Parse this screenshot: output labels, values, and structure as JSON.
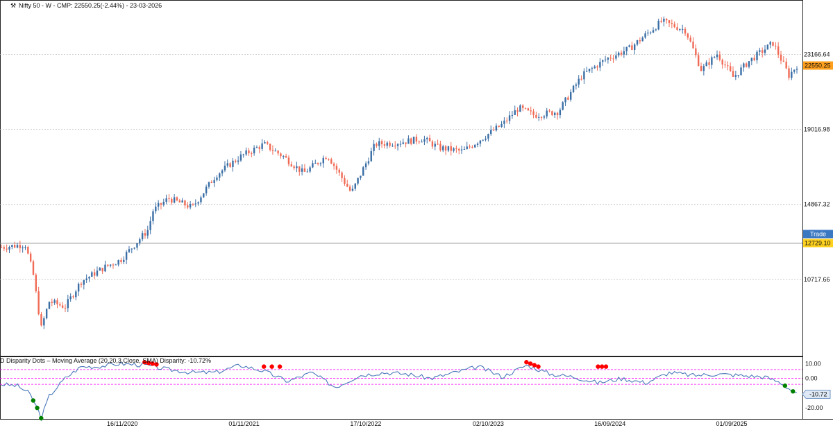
{
  "header": {
    "title": "Nifty 50 - W - CMP: 22550.25(-2.44%) - 23-03-2026",
    "icon": "wrench-icon"
  },
  "indicator": {
    "title": "D Disparity Dots – Moving Average (20,20,3,Close, SMA) Disparity: -10.72%"
  },
  "colors": {
    "up": "#3a6ea5",
    "down": "#f06a55",
    "indicator_line": "#4a78b8",
    "dot_top": "#ff0000",
    "dot_bottom": "#008000",
    "band": "#ff00ff",
    "cmp_badge": "#ff9f1c",
    "trade_badge": "#3a78c2",
    "trade_price_badge": "#ffd21f"
  },
  "chart_data": [
    {
      "type": "candlestick",
      "title": "Nifty 50 - W - CMP: 22550.25(-2.44%) - 23-03-2026",
      "y_ticks": [
        23166.64,
        19016.98,
        14867.32,
        10717.66
      ],
      "y_tick_labels": [
        "23166.64",
        "19016.98",
        "14867.32",
        "10717.66"
      ],
      "ylim": [
        6800,
        25600
      ],
      "cmp": {
        "value": 22550.25,
        "label": "22550.25"
      },
      "trade": {
        "label": "Trade",
        "value": 12729.1,
        "price_label": "12729.10"
      },
      "grid": true,
      "price_path": [
        [
          0,
          12500
        ],
        [
          0.03,
          12650
        ],
        [
          0.04,
          11000
        ],
        [
          0.05,
          8000
        ],
        [
          0.06,
          9500
        ],
        [
          0.08,
          9200
        ],
        [
          0.1,
          10600
        ],
        [
          0.13,
          11400
        ],
        [
          0.15,
          11800
        ],
        [
          0.185,
          13500
        ],
        [
          0.19,
          14500
        ],
        [
          0.21,
          15200
        ],
        [
          0.24,
          14700
        ],
        [
          0.27,
          16500
        ],
        [
          0.3,
          17500
        ],
        [
          0.33,
          18200
        ],
        [
          0.355,
          17500
        ],
        [
          0.38,
          16600
        ],
        [
          0.41,
          17600
        ],
        [
          0.44,
          15500
        ],
        [
          0.47,
          18200
        ],
        [
          0.5,
          18300
        ],
        [
          0.53,
          18500
        ],
        [
          0.55,
          18000
        ],
        [
          0.58,
          17800
        ],
        [
          0.63,
          19300
        ],
        [
          0.65,
          20200
        ],
        [
          0.67,
          19800
        ],
        [
          0.7,
          20000
        ],
        [
          0.73,
          22000
        ],
        [
          0.76,
          22900
        ],
        [
          0.79,
          23500
        ],
        [
          0.83,
          25000
        ],
        [
          0.86,
          24500
        ],
        [
          0.88,
          22300
        ],
        [
          0.9,
          23200
        ],
        [
          0.92,
          21900
        ],
        [
          0.94,
          22800
        ],
        [
          0.97,
          23800
        ],
        [
          0.99,
          22000
        ],
        [
          1.0,
          22550
        ]
      ]
    },
    {
      "type": "line",
      "title": "D Disparity Dots – Moving Average (20,20,3,Close, SMA) Disparity: -10.72%",
      "y_ticks": [
        10,
        0,
        -20
      ],
      "y_tick_labels": [
        "10.00",
        "0.00",
        "-20.00"
      ],
      "ylim": [
        -27,
        13
      ],
      "bands": [
        6,
        0,
        -4
      ],
      "current": {
        "value": -10.72,
        "label": "-10.72"
      },
      "x_labels": [
        "16/11/2020",
        "01/11/2021",
        "17/10/2022",
        "02/10/2023",
        "16/09/2024",
        "01/09/2025"
      ],
      "disparity_path": [
        [
          0,
          -4
        ],
        [
          0.02,
          -5
        ],
        [
          0.035,
          -10
        ],
        [
          0.045,
          -20
        ],
        [
          0.05,
          -27
        ],
        [
          0.06,
          -12
        ],
        [
          0.08,
          0
        ],
        [
          0.1,
          8
        ],
        [
          0.12,
          8
        ],
        [
          0.15,
          10
        ],
        [
          0.18,
          9
        ],
        [
          0.21,
          6
        ],
        [
          0.24,
          4
        ],
        [
          0.27,
          4
        ],
        [
          0.3,
          9
        ],
        [
          0.33,
          5
        ],
        [
          0.36,
          -2
        ],
        [
          0.39,
          4
        ],
        [
          0.42,
          -6
        ],
        [
          0.45,
          2
        ],
        [
          0.48,
          4
        ],
        [
          0.51,
          3
        ],
        [
          0.54,
          0
        ],
        [
          0.57,
          4
        ],
        [
          0.6,
          8
        ],
        [
          0.63,
          1
        ],
        [
          0.66,
          9
        ],
        [
          0.69,
          3
        ],
        [
          0.72,
          1
        ],
        [
          0.75,
          -3
        ],
        [
          0.78,
          0
        ],
        [
          0.81,
          -3
        ],
        [
          0.84,
          4
        ],
        [
          0.87,
          2
        ],
        [
          0.9,
          3
        ],
        [
          0.93,
          2
        ],
        [
          0.96,
          1
        ],
        [
          0.98,
          -3
        ],
        [
          1.0,
          -10.7
        ]
      ],
      "top_dots": [
        0.18,
        0.185,
        0.19,
        0.195,
        0.33,
        0.34,
        0.35,
        0.66,
        0.665,
        0.67,
        0.675,
        0.75,
        0.755,
        0.76
      ],
      "bottom_dots": [
        0.04,
        0.045,
        0.05,
        0.985,
        0.995
      ]
    }
  ]
}
